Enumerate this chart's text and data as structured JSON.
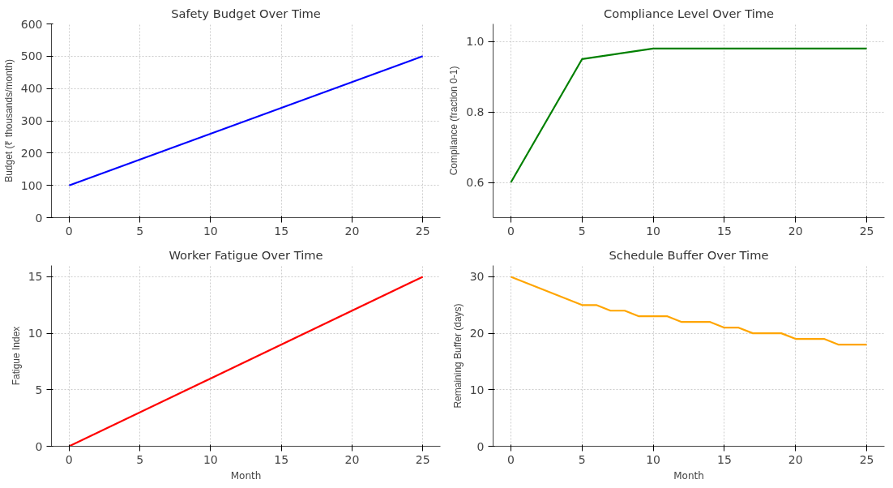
{
  "chart_data": [
    {
      "type": "line",
      "title": "Safety Budget Over Time",
      "ylabel": "Budget (₹ thousands/month)",
      "x": [
        0,
        25
      ],
      "series": [
        {
          "color": "#0000ff",
          "values": [
            100,
            500
          ]
        }
      ],
      "xlim": [
        -1.25,
        26.25
      ],
      "ylim": [
        0,
        600
      ],
      "xticks": [
        0,
        5,
        10,
        15,
        20,
        25
      ],
      "yticks": [
        0,
        100,
        200,
        300,
        400,
        500,
        600
      ],
      "grid": true
    },
    {
      "type": "line",
      "title": "Compliance Level Over Time",
      "ylabel": "Compliance (fraction 0-1)",
      "x": [
        0,
        5,
        10,
        15,
        20,
        25
      ],
      "series": [
        {
          "color": "#008000",
          "values": [
            0.6,
            0.95,
            0.98,
            0.98,
            0.98,
            0.98
          ]
        }
      ],
      "xlim": [
        -1.25,
        26.25
      ],
      "ylim": [
        0.5,
        1.05
      ],
      "xticks": [
        0,
        5,
        10,
        15,
        20,
        25
      ],
      "yticks": [
        {
          "value": 0.6,
          "label": "0.6"
        },
        {
          "value": 0.8,
          "label": "0.8"
        },
        {
          "value": 1.0,
          "label": "1.0"
        }
      ],
      "grid": true
    },
    {
      "type": "line",
      "title": "Worker Fatigue Over Time",
      "xlabel": "Month",
      "ylabel": "Fatigue Index",
      "x": [
        0,
        25
      ],
      "series": [
        {
          "color": "#ff0000",
          "values": [
            0,
            15
          ]
        }
      ],
      "xlim": [
        -1.25,
        26.25
      ],
      "ylim": [
        0,
        16
      ],
      "xticks": [
        0,
        5,
        10,
        15,
        20,
        25
      ],
      "yticks": [
        0,
        5,
        10,
        15
      ],
      "grid": true
    },
    {
      "type": "line",
      "title": "Schedule Buffer Over Time",
      "xlabel": "Month",
      "ylabel": "Remaining Buffer (days)",
      "x": [
        0,
        5,
        6,
        7,
        8,
        9,
        10,
        11,
        12,
        13,
        14,
        15,
        16,
        17,
        18,
        19,
        20,
        21,
        22,
        23,
        24,
        25
      ],
      "series": [
        {
          "color": "#ffa500",
          "values": [
            30,
            25,
            25,
            24,
            24,
            23,
            23,
            23,
            22,
            22,
            22,
            21,
            21,
            20,
            20,
            20,
            19,
            19,
            19,
            18,
            18,
            18
          ]
        }
      ],
      "xlim": [
        -1.25,
        26.25
      ],
      "ylim": [
        0,
        32
      ],
      "xticks": [
        0,
        5,
        10,
        15,
        20,
        25
      ],
      "yticks": [
        0,
        10,
        20,
        30
      ],
      "grid": true
    }
  ]
}
